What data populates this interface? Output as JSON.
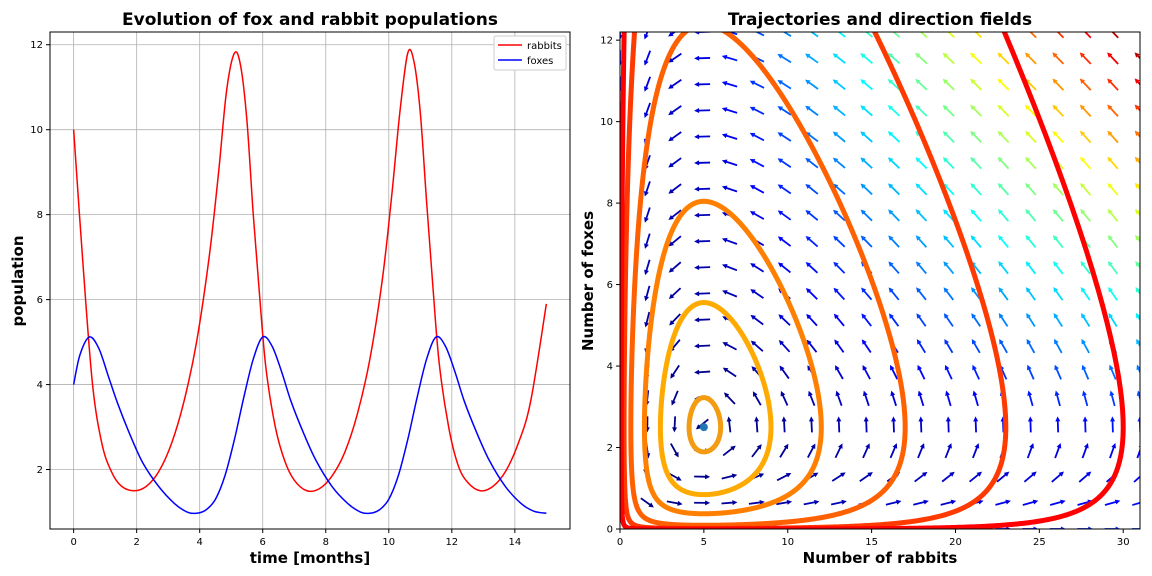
{
  "chart_data": [
    {
      "type": "line",
      "title": "Evolution of fox and rabbit populations",
      "xlabel": "time [months]",
      "ylabel": "population",
      "xlim": [
        -0.75,
        15.75
      ],
      "ylim": [
        0.6,
        12.3
      ],
      "xticks": [
        0,
        2,
        4,
        6,
        8,
        10,
        12,
        14
      ],
      "yticks": [
        2,
        4,
        6,
        8,
        10,
        12
      ],
      "grid": true,
      "legend_position": "top-right",
      "series": [
        {
          "name": "rabbits",
          "color": "#ff0000",
          "points": [
            [
              0,
              10.0
            ],
            [
              0.3,
              6.8
            ],
            [
              0.6,
              4.0
            ],
            [
              0.9,
              2.6
            ],
            [
              1.2,
              1.95
            ],
            [
              1.5,
              1.62
            ],
            [
              1.9,
              1.5
            ],
            [
              2.3,
              1.6
            ],
            [
              2.7,
              1.95
            ],
            [
              3.1,
              2.6
            ],
            [
              3.5,
              3.6
            ],
            [
              3.9,
              5.0
            ],
            [
              4.3,
              7.0
            ],
            [
              4.6,
              9.0
            ],
            [
              4.85,
              10.9
            ],
            [
              5.1,
              11.8
            ],
            [
              5.3,
              11.5
            ],
            [
              5.5,
              10.2
            ],
            [
              5.7,
              8.0
            ],
            [
              5.9,
              6.1
            ],
            [
              6.1,
              4.4
            ],
            [
              6.4,
              3.0
            ],
            [
              6.7,
              2.2
            ],
            [
              7.0,
              1.75
            ],
            [
              7.4,
              1.5
            ],
            [
              7.8,
              1.55
            ],
            [
              8.2,
              1.85
            ],
            [
              8.6,
              2.4
            ],
            [
              9.0,
              3.3
            ],
            [
              9.4,
              4.6
            ],
            [
              9.8,
              6.5
            ],
            [
              10.1,
              8.5
            ],
            [
              10.35,
              10.4
            ],
            [
              10.6,
              11.8
            ],
            [
              10.8,
              11.6
            ],
            [
              11.0,
              10.4
            ],
            [
              11.2,
              8.3
            ],
            [
              11.4,
              6.3
            ],
            [
              11.6,
              4.5
            ],
            [
              11.9,
              3.0
            ],
            [
              12.2,
              2.1
            ],
            [
              12.5,
              1.7
            ],
            [
              12.9,
              1.5
            ],
            [
              13.3,
              1.6
            ],
            [
              13.7,
              1.95
            ],
            [
              14.1,
              2.6
            ],
            [
              14.5,
              3.6
            ],
            [
              15.0,
              5.9
            ]
          ]
        },
        {
          "name": "foxes",
          "color": "#0000ff",
          "points": [
            [
              0,
              4.0
            ],
            [
              0.2,
              4.7
            ],
            [
              0.5,
              5.12
            ],
            [
              0.8,
              4.85
            ],
            [
              1.1,
              4.2
            ],
            [
              1.4,
              3.55
            ],
            [
              1.8,
              2.8
            ],
            [
              2.2,
              2.15
            ],
            [
              2.7,
              1.6
            ],
            [
              3.2,
              1.2
            ],
            [
              3.6,
              1.0
            ],
            [
              3.9,
              0.97
            ],
            [
              4.2,
              1.05
            ],
            [
              4.5,
              1.3
            ],
            [
              4.8,
              1.85
            ],
            [
              5.1,
              2.7
            ],
            [
              5.4,
              3.7
            ],
            [
              5.7,
              4.6
            ],
            [
              6.0,
              5.12
            ],
            [
              6.3,
              4.9
            ],
            [
              6.6,
              4.3
            ],
            [
              6.9,
              3.6
            ],
            [
              7.3,
              2.85
            ],
            [
              7.7,
              2.2
            ],
            [
              8.2,
              1.6
            ],
            [
              8.7,
              1.2
            ],
            [
              9.1,
              1.0
            ],
            [
              9.4,
              0.97
            ],
            [
              9.7,
              1.05
            ],
            [
              10.0,
              1.3
            ],
            [
              10.3,
              1.85
            ],
            [
              10.6,
              2.7
            ],
            [
              10.9,
              3.7
            ],
            [
              11.2,
              4.6
            ],
            [
              11.5,
              5.12
            ],
            [
              11.8,
              4.9
            ],
            [
              12.1,
              4.3
            ],
            [
              12.4,
              3.6
            ],
            [
              12.8,
              2.85
            ],
            [
              13.2,
              2.2
            ],
            [
              13.7,
              1.6
            ],
            [
              14.2,
              1.2
            ],
            [
              14.6,
              1.02
            ],
            [
              15.0,
              0.97
            ]
          ]
        }
      ]
    },
    {
      "type": "quiver",
      "title": "Trajectories and direction fields",
      "xlabel": "Number of rabbits",
      "ylabel": "Number of foxes",
      "xlim": [
        0,
        31
      ],
      "ylim": [
        0,
        12.2
      ],
      "xticks": [
        0,
        5,
        10,
        15,
        20,
        25,
        30
      ],
      "yticks": [
        0,
        2,
        4,
        6,
        8,
        10,
        12
      ],
      "equilibrium": [
        5.0,
        2.5
      ],
      "equilibrium_color": "#1f77b4",
      "field_params": {
        "a": 1.0,
        "b": 0.4,
        "c": 2.0,
        "d": 0.4
      },
      "field_grid": {
        "nx": 20,
        "ny": 20
      },
      "trajectories": [
        {
          "x0": 6.0,
          "y0": 2.5,
          "color": "#f39c12"
        },
        {
          "x0": 9.0,
          "y0": 2.5,
          "color": "#ffaa00"
        },
        {
          "x0": 12.0,
          "y0": 2.5,
          "color": "#ff8000"
        },
        {
          "x0": 17.0,
          "y0": 2.5,
          "color": "#ff6000"
        },
        {
          "x0": 23.0,
          "y0": 2.5,
          "color": "#ff3a00"
        },
        {
          "x0": 30.0,
          "y0": 2.5,
          "color": "#ff0000"
        }
      ]
    }
  ]
}
